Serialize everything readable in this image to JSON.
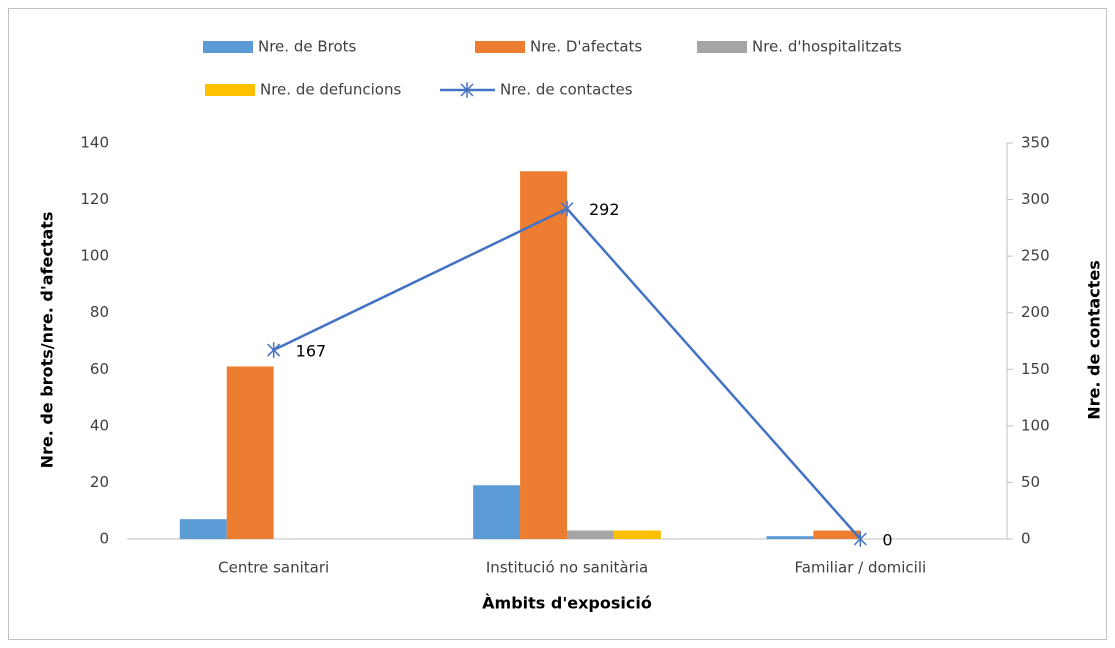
{
  "chart_data": {
    "type": "bar",
    "categories": [
      "Centre sanitari",
      "Institució no sanitària",
      "Familiar / domicili"
    ],
    "series": [
      {
        "name": "Nre. de Brots",
        "color": "#5b9bd5",
        "values": [
          7,
          19,
          1
        ]
      },
      {
        "name": "Nre. D'afectats",
        "color": "#ed7d31",
        "values": [
          61,
          130,
          3
        ]
      },
      {
        "name": "Nre. d'hospitalitzats",
        "color": "#a5a5a5",
        "values": [
          0,
          3,
          0
        ]
      },
      {
        "name": "Nre. de defuncions",
        "color": "#ffc000",
        "values": [
          0,
          3,
          0
        ]
      },
      {
        "name": "Nre. de contactes",
        "color": "#4472c4",
        "type": "line",
        "axis": "y2",
        "values": [
          167,
          292,
          0
        ]
      }
    ],
    "xlabel": "Àmbits d'exposició",
    "ylabel": "Nre. de brots/nre. d'afectats",
    "y2label": "Nre. de contactes",
    "ylim": [
      0,
      140
    ],
    "yticks": [
      0,
      20,
      40,
      60,
      80,
      100,
      120,
      140
    ],
    "y2lim": [
      0,
      350
    ],
    "y2ticks": [
      0,
      50,
      100,
      150,
      200,
      250,
      300,
      350
    ],
    "legend": "top",
    "grid": false
  }
}
